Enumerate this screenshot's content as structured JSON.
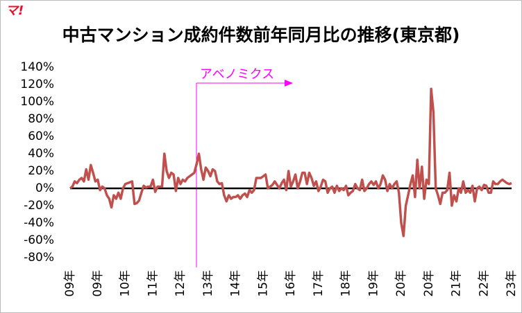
{
  "logo": "マ!",
  "chart_data": {
    "type": "line",
    "title": "中古マンション成約件数前年同月比の推移(東京都)",
    "annotation": "アベノミクス",
    "categories": [
      "09年",
      null,
      null,
      null,
      null,
      null,
      null,
      null,
      null,
      null,
      null,
      null,
      "09年",
      null,
      null,
      null,
      null,
      null,
      null,
      null,
      null,
      null,
      null,
      null,
      "10年",
      null,
      null,
      null,
      null,
      null,
      null,
      null,
      null,
      null,
      null,
      null,
      "11年",
      null,
      null,
      null,
      null,
      null,
      null,
      null,
      null,
      null,
      null,
      null,
      "12年",
      null,
      null,
      null,
      null,
      null,
      null,
      null,
      null,
      null,
      null,
      null,
      "13年",
      null,
      null,
      null,
      null,
      null,
      null,
      null,
      null,
      null,
      null,
      null,
      "14年",
      null,
      null,
      null,
      null,
      null,
      null,
      null,
      null,
      null,
      null,
      null,
      "15年",
      null,
      null,
      null,
      null,
      null,
      null,
      null,
      null,
      null,
      null,
      null,
      "16年",
      null,
      null,
      null,
      null,
      null,
      null,
      null,
      null,
      null,
      null,
      null,
      "17年",
      null,
      null,
      null,
      null,
      null,
      null,
      null,
      null,
      null,
      null,
      null,
      "18年",
      null,
      null,
      null,
      null,
      null,
      null,
      null,
      null,
      null,
      null,
      null,
      "19年",
      null,
      null,
      null,
      null,
      null,
      null,
      null,
      null,
      null,
      null,
      null,
      "20年",
      null,
      null,
      null,
      null,
      null,
      null,
      null,
      null,
      null,
      null,
      null,
      "20年",
      null,
      null,
      null,
      null,
      null,
      null,
      null,
      null,
      null,
      null,
      null,
      "21年",
      null,
      null,
      null,
      null,
      null,
      null,
      null,
      null,
      null,
      null,
      null,
      "22年",
      null,
      null,
      null,
      null,
      null,
      null,
      null,
      null,
      null,
      null,
      null,
      "23年"
    ],
    "series": [
      {
        "color": "#c0504d",
        "values": [
          0,
          2,
          8,
          6,
          10,
          12,
          8,
          22,
          10,
          27,
          18,
          8,
          10,
          -2,
          2,
          0,
          -8,
          -12,
          -22,
          -8,
          -12,
          -5,
          -12,
          0,
          5,
          6,
          7,
          8,
          -18,
          -17,
          -14,
          -5,
          3,
          1,
          2,
          2,
          10,
          -4,
          2,
          2,
          2,
          40,
          20,
          12,
          18,
          16,
          -3,
          12,
          5,
          10,
          8,
          12,
          14,
          16,
          18,
          28,
          40,
          22,
          10,
          24,
          20,
          14,
          22,
          20,
          8,
          5,
          6,
          -8,
          -15,
          -8,
          -12,
          -10,
          -10,
          -8,
          -12,
          -8,
          -6,
          -10,
          -2,
          -5,
          -2,
          12,
          12,
          12,
          14,
          16,
          0,
          2,
          4,
          8,
          4,
          0,
          6,
          10,
          -2,
          20,
          2,
          8,
          16,
          0,
          8,
          18,
          18,
          5,
          18,
          12,
          3,
          8,
          -3,
          2,
          10,
          8,
          -5,
          0,
          2,
          -5,
          3,
          -3,
          0,
          -2,
          3,
          -8,
          -5,
          -3,
          5,
          0,
          -2,
          10,
          -3,
          0,
          5,
          8,
          4,
          8,
          0,
          5,
          15,
          10,
          -3,
          5,
          0,
          5,
          8,
          -5,
          -40,
          -55,
          -20,
          -8,
          5,
          15,
          -10,
          33,
          0,
          25,
          -12,
          10,
          5,
          115,
          88,
          0,
          -8,
          -18,
          -5,
          -5,
          -2,
          18,
          -20,
          -8,
          -15,
          0,
          -5,
          8,
          -5,
          -2,
          -5,
          3,
          -15,
          0,
          2,
          -2,
          4,
          3,
          -5,
          -5,
          8,
          5,
          5,
          8,
          10,
          8,
          6,
          5,
          6
        ]
      }
    ],
    "ylim": [
      -80,
      140
    ],
    "yticks": [
      {
        "value": -80,
        "label": "-80%"
      },
      {
        "value": -60,
        "label": "-60%"
      },
      {
        "value": -40,
        "label": "-40%"
      },
      {
        "value": -20,
        "label": "-20%"
      },
      {
        "value": 0,
        "label": "0%"
      },
      {
        "value": 20,
        "label": "20%"
      },
      {
        "value": 40,
        "label": "40%"
      },
      {
        "value": 60,
        "label": "60%"
      },
      {
        "value": 80,
        "label": "80%"
      },
      {
        "value": 100,
        "label": "100%"
      },
      {
        "value": 120,
        "label": "120%"
      },
      {
        "value": 140,
        "label": "140%"
      }
    ],
    "zero_line": true
  }
}
